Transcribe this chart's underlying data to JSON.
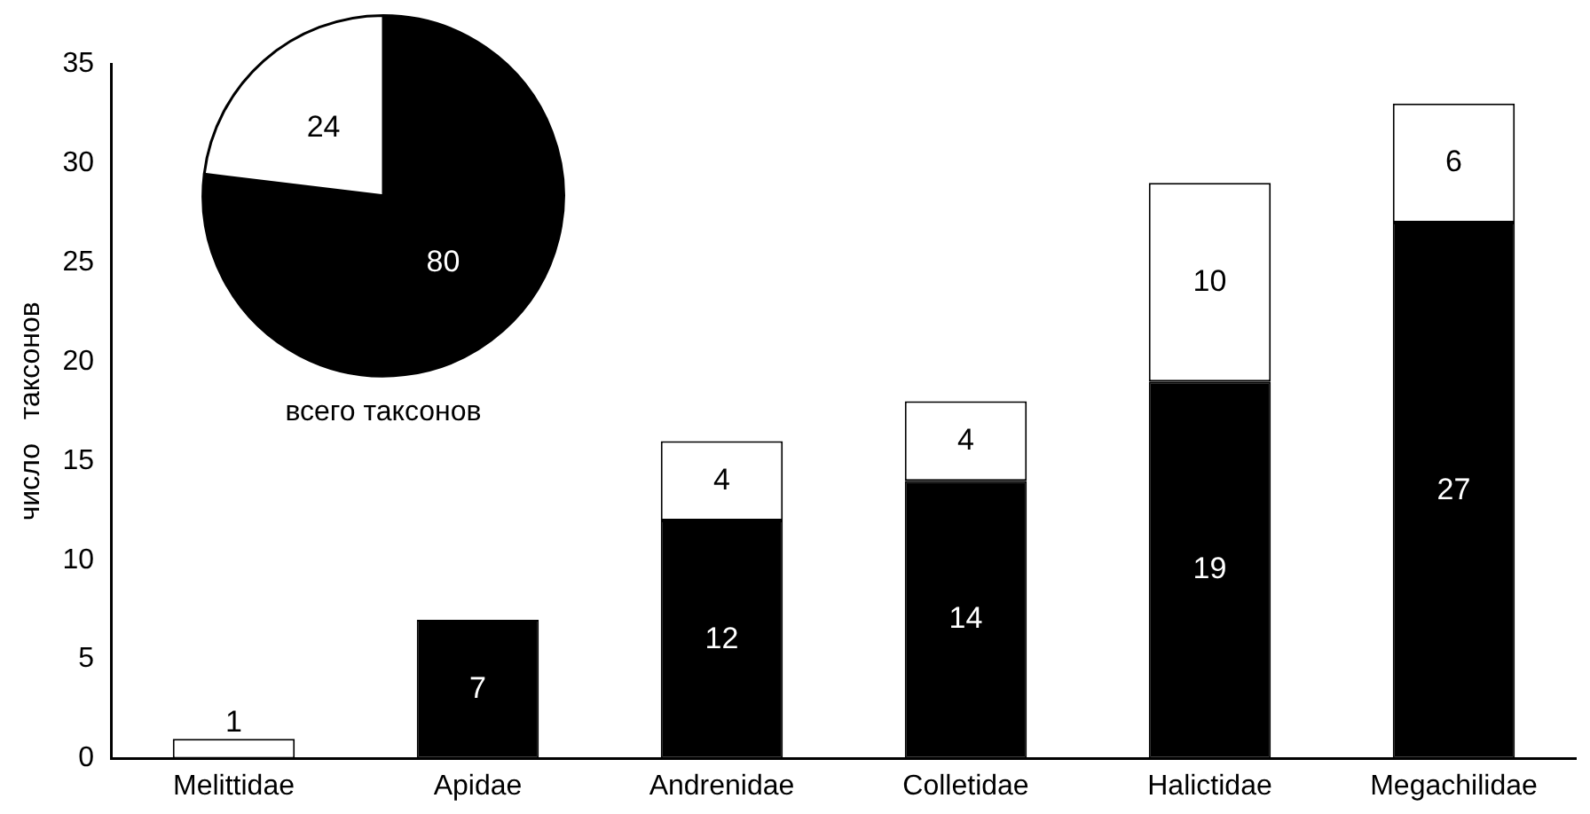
{
  "chart_data": [
    {
      "type": "bar",
      "ylabel": "число   таксонов",
      "categories": [
        "Melittidae",
        "Apidae",
        "Andrenidae",
        "Colletidae",
        "Halictidae",
        "Megachilidae"
      ],
      "stacked": true,
      "ylim": [
        0,
        35
      ],
      "yticks": [
        0,
        5,
        10,
        15,
        20,
        25,
        30,
        35
      ],
      "grid": false,
      "legend": false,
      "series": [
        {
          "color": "#000000",
          "values": [
            null,
            7,
            12,
            14,
            19,
            27
          ],
          "value_labels": [
            null,
            "7",
            "12",
            "14",
            "19",
            "27"
          ]
        },
        {
          "color": "#ffffff",
          "values": [
            1,
            null,
            4,
            4,
            10,
            6
          ],
          "value_labels": [
            "1",
            null,
            "4",
            "4",
            "10",
            "6"
          ]
        }
      ]
    },
    {
      "type": "pie",
      "title": "всего таксонов",
      "categories": [
        null,
        null
      ],
      "values": [
        80,
        24
      ],
      "colors": [
        "#000000",
        "#ffffff"
      ],
      "data_labels": true,
      "legend": false
    }
  ]
}
